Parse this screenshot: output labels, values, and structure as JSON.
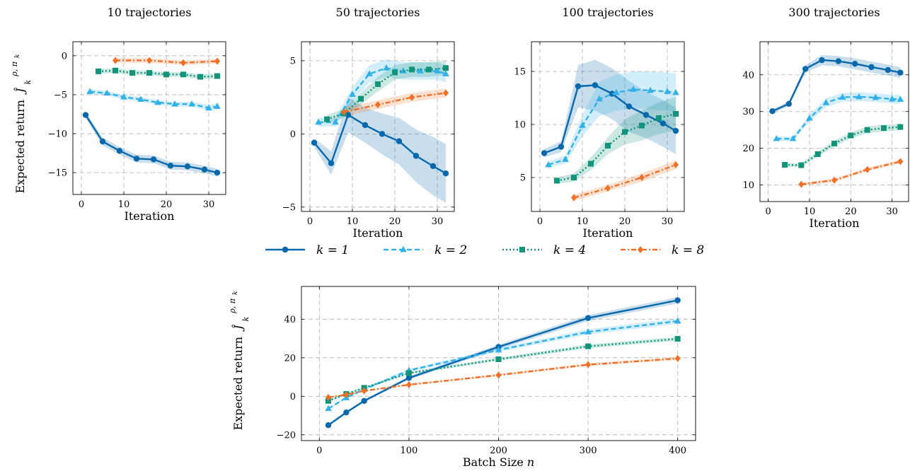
{
  "figure": {
    "ylabel": "Expected return",
    "ylabel_symbol": "Ĵ",
    "ylabel_super": "ρ, π",
    "ylabel_super_sub": "k",
    "ylabel_sub": "k"
  },
  "legend": [
    {
      "label": "k = 1",
      "color": "#0868ac",
      "dash": "solid",
      "marker": "circle"
    },
    {
      "label": "k = 2",
      "color": "#33b0e6",
      "dash": "dashed",
      "marker": "triangle"
    },
    {
      "label": "k = 4",
      "color": "#12947a",
      "dash": "dotted",
      "marker": "square"
    },
    {
      "label": "k = 8",
      "color": "#f0702a",
      "dash": "dashdot",
      "marker": "diamond"
    }
  ],
  "chart_data": [
    {
      "type": "line",
      "title": "10 trajectories",
      "xlabel": "Iteration",
      "ylabel": "Expected return",
      "xlim": [
        -2,
        34
      ],
      "ylim": [
        -17.8,
        1.8
      ],
      "xticks": [
        0,
        10,
        20,
        30
      ],
      "yticks": [
        0,
        -5,
        -10,
        -15
      ],
      "ytick_labels": [
        "0",
        "−5",
        "−10",
        "−15"
      ],
      "grid": true,
      "series": [
        {
          "name": "k = 1",
          "x": [
            1,
            5,
            9,
            13,
            17,
            21,
            25,
            29,
            32
          ],
          "y": [
            -7.6,
            -11.0,
            -12.2,
            -13.2,
            -13.3,
            -14.1,
            -14.2,
            -14.6,
            -15.0
          ],
          "band": [
            0.4,
            0.5,
            0.5,
            0.5,
            0.5,
            0.5,
            0.5,
            0.5,
            0.5
          ]
        },
        {
          "name": "k = 2",
          "x": [
            2,
            6,
            10,
            14,
            18,
            22,
            26,
            30,
            32
          ],
          "y": [
            -4.6,
            -4.8,
            -5.3,
            -5.6,
            -6.0,
            -6.2,
            -6.2,
            -6.7,
            -6.5
          ],
          "band": [
            0.3,
            0.3,
            0.3,
            0.3,
            0.3,
            0.3,
            0.3,
            0.4,
            0.4
          ]
        },
        {
          "name": "k = 4",
          "x": [
            4,
            8,
            12,
            16,
            20,
            24,
            28,
            32
          ],
          "y": [
            -2.0,
            -1.9,
            -2.2,
            -2.2,
            -2.4,
            -2.4,
            -2.7,
            -2.6
          ],
          "band": [
            0.3,
            0.3,
            0.3,
            0.3,
            0.3,
            0.3,
            0.3,
            0.3
          ]
        },
        {
          "name": "k = 8",
          "x": [
            8,
            16,
            24,
            32
          ],
          "y": [
            -0.6,
            -0.6,
            -0.9,
            -0.7
          ],
          "band": [
            0.3,
            0.3,
            0.3,
            0.3
          ]
        }
      ]
    },
    {
      "type": "line",
      "title": "50 trajectories",
      "xlabel": "Iteration",
      "ylabel": "",
      "xlim": [
        -2,
        34
      ],
      "ylim": [
        -5.3,
        6.3
      ],
      "xticks": [
        0,
        10,
        20,
        30
      ],
      "yticks": [
        5,
        0,
        -5
      ],
      "ytick_labels": [
        "5",
        "0",
        "−5"
      ],
      "grid": true,
      "series": [
        {
          "name": "k = 1",
          "x": [
            1,
            5,
            9,
            13,
            17,
            21,
            25,
            29,
            32
          ],
          "y": [
            -0.6,
            -2.0,
            1.3,
            0.6,
            0.0,
            -0.5,
            -1.5,
            -2.2,
            -2.7
          ],
          "band": [
            0.3,
            0.8,
            1.2,
            1.2,
            1.4,
            1.6,
            1.8,
            2.0,
            2.0
          ]
        },
        {
          "name": "k = 2",
          "x": [
            2,
            6,
            10,
            14,
            18,
            22,
            26,
            30,
            32
          ],
          "y": [
            0.8,
            0.8,
            2.7,
            4.1,
            4.5,
            4.3,
            4.3,
            4.3,
            4.1
          ],
          "band": [
            0.3,
            0.3,
            0.5,
            0.6,
            0.6,
            0.6,
            0.6,
            0.6,
            0.6
          ]
        },
        {
          "name": "k = 4",
          "x": [
            4,
            8,
            12,
            16,
            20,
            24,
            28,
            32
          ],
          "y": [
            1.0,
            1.4,
            2.4,
            3.4,
            4.2,
            4.4,
            4.4,
            4.5
          ],
          "band": [
            0.3,
            0.3,
            0.4,
            0.5,
            0.5,
            0.5,
            0.5,
            0.5
          ]
        },
        {
          "name": "k = 8",
          "x": [
            8,
            16,
            24,
            32
          ],
          "y": [
            1.5,
            2.0,
            2.5,
            2.8
          ],
          "band": [
            0.3,
            0.3,
            0.3,
            0.3
          ]
        }
      ]
    },
    {
      "type": "line",
      "title": "100 trajectories",
      "xlabel": "Iteration",
      "ylabel": "",
      "xlim": [
        -2,
        34
      ],
      "ylim": [
        1.8,
        17.8
      ],
      "xticks": [
        0,
        10,
        20,
        30
      ],
      "yticks": [
        15,
        10,
        5
      ],
      "ytick_labels": [
        "15",
        "10",
        "5"
      ],
      "grid": true,
      "series": [
        {
          "name": "k = 1",
          "x": [
            1,
            5,
            9,
            13,
            17,
            21,
            25,
            29,
            32
          ],
          "y": [
            7.3,
            7.9,
            13.6,
            13.7,
            12.9,
            11.7,
            10.9,
            10.1,
            9.4
          ],
          "band": [
            0.4,
            0.5,
            2.0,
            2.4,
            2.4,
            2.4,
            2.2,
            2.2,
            2.2
          ]
        },
        {
          "name": "k = 2",
          "x": [
            2,
            6,
            10,
            14,
            18,
            22,
            26,
            30,
            32
          ],
          "y": [
            6.2,
            6.7,
            9.9,
            12.4,
            13.0,
            13.3,
            13.2,
            13.1,
            13.0
          ],
          "band": [
            0.3,
            0.4,
            1.0,
            1.6,
            1.7,
            1.7,
            1.8,
            1.8,
            1.8
          ]
        },
        {
          "name": "k = 4",
          "x": [
            4,
            8,
            12,
            16,
            20,
            24,
            28,
            32
          ],
          "y": [
            4.7,
            5.0,
            6.3,
            8.0,
            9.3,
            9.9,
            10.6,
            11.0
          ],
          "band": [
            0.3,
            0.4,
            0.6,
            0.8,
            1.2,
            1.4,
            1.5,
            1.6
          ]
        },
        {
          "name": "k = 8",
          "x": [
            8,
            16,
            24,
            32
          ],
          "y": [
            3.1,
            4.0,
            5.0,
            6.2
          ],
          "band": [
            0.3,
            0.3,
            0.4,
            0.4
          ]
        }
      ]
    },
    {
      "type": "line",
      "title": "300 trajectories",
      "xlabel": "Iteration",
      "ylabel": "",
      "xlim": [
        -2,
        34
      ],
      "ylim": [
        5.5,
        49
      ],
      "xticks": [
        0,
        10,
        20,
        30
      ],
      "yticks": [
        40,
        30,
        20,
        10
      ],
      "ytick_labels": [
        "40",
        "30",
        "20",
        "10"
      ],
      "grid": true,
      "series": [
        {
          "name": "k = 1",
          "x": [
            1,
            5,
            9,
            13,
            17,
            21,
            25,
            29,
            32
          ],
          "y": [
            30.1,
            32.1,
            41.6,
            44.0,
            43.7,
            43.0,
            42.1,
            41.3,
            40.6
          ],
          "band": [
            0.6,
            0.6,
            1.0,
            1.4,
            1.4,
            1.5,
            1.5,
            1.5,
            1.5
          ]
        },
        {
          "name": "k = 2",
          "x": [
            2,
            6,
            10,
            14,
            18,
            22,
            26,
            30,
            32
          ],
          "y": [
            22.6,
            22.6,
            28.2,
            32.4,
            33.9,
            34.0,
            33.8,
            33.4,
            33.3
          ],
          "band": [
            0.6,
            0.6,
            1.0,
            1.2,
            1.2,
            1.2,
            1.2,
            1.2,
            1.2
          ]
        },
        {
          "name": "k = 4",
          "x": [
            4,
            8,
            12,
            16,
            20,
            24,
            28,
            32
          ],
          "y": [
            15.5,
            15.4,
            18.4,
            21.3,
            23.5,
            25.0,
            25.5,
            25.8
          ],
          "band": [
            0.5,
            0.5,
            0.7,
            0.8,
            0.8,
            0.9,
            0.9,
            0.9
          ]
        },
        {
          "name": "k = 8",
          "x": [
            8,
            16,
            24,
            32
          ],
          "y": [
            10.2,
            11.3,
            14.2,
            16.4
          ],
          "band": [
            0.4,
            0.5,
            0.5,
            0.5
          ]
        }
      ]
    },
    {
      "type": "line",
      "title": "",
      "xlabel": "Batch Size",
      "xlabel_var": "n",
      "ylabel": "Expected return",
      "xlim": [
        -20,
        420
      ],
      "ylim": [
        -23,
        57
      ],
      "xticks": [
        0,
        100,
        200,
        300,
        400
      ],
      "yticks": [
        40,
        20,
        0,
        -20
      ],
      "ytick_labels": [
        "40",
        "20",
        "0",
        "−20"
      ],
      "grid": true,
      "series": [
        {
          "name": "k = 1",
          "x": [
            10,
            30,
            50,
            100,
            200,
            300,
            400
          ],
          "y": [
            -15.0,
            -8.4,
            -2.4,
            9.5,
            25.6,
            40.6,
            49.8
          ],
          "band": [
            0.6,
            0.6,
            0.6,
            0.8,
            1.2,
            1.6,
            1.6
          ]
        },
        {
          "name": "k = 2",
          "x": [
            10,
            30,
            50,
            100,
            200,
            300,
            400
          ],
          "y": [
            -6.4,
            -0.8,
            3.6,
            13.4,
            24.0,
            33.4,
            39.0
          ],
          "band": [
            0.5,
            0.5,
            0.6,
            0.8,
            1.0,
            1.4,
            1.4
          ]
        },
        {
          "name": "k = 4",
          "x": [
            10,
            30,
            50,
            100,
            200,
            300,
            400
          ],
          "y": [
            -2.4,
            1.2,
            4.4,
            12.0,
            19.2,
            25.9,
            29.8
          ],
          "band": [
            0.5,
            0.5,
            0.5,
            0.6,
            0.8,
            1.0,
            1.0
          ]
        },
        {
          "name": "k = 8",
          "x": [
            10,
            30,
            50,
            100,
            200,
            300,
            400
          ],
          "y": [
            -0.6,
            0.8,
            2.8,
            6.0,
            11.0,
            16.4,
            19.6
          ],
          "band": [
            0.4,
            0.4,
            0.4,
            0.5,
            0.6,
            0.7,
            0.7
          ]
        }
      ]
    }
  ]
}
